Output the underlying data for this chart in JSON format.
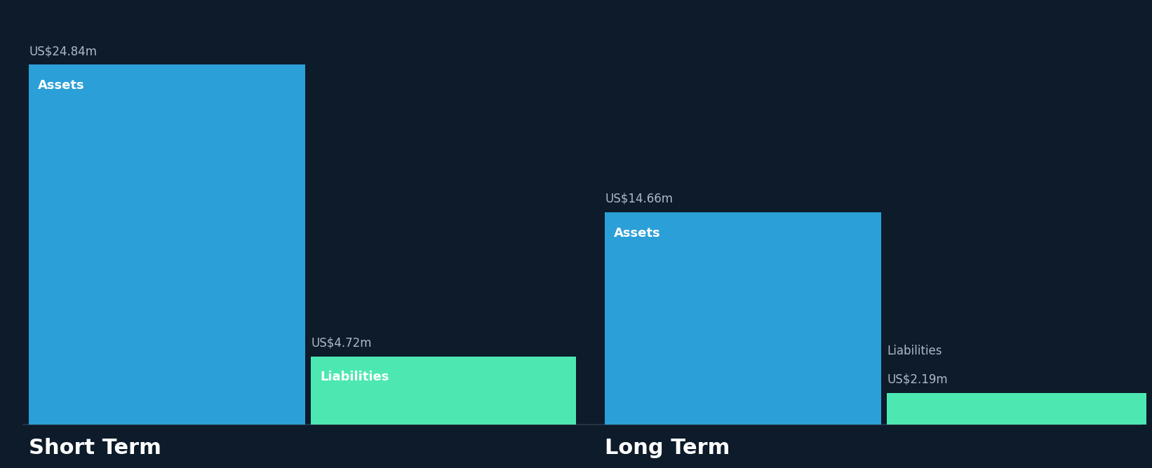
{
  "background_color": "#0d1b2a",
  "short_term": {
    "assets_value": 24.84,
    "liabilities_value": 4.72,
    "assets_label": "Assets",
    "liabilities_label": "Liabilities",
    "assets_color": "#2b9fd8",
    "liabilities_color": "#4de8b2",
    "label": "Short Term"
  },
  "long_term": {
    "assets_value": 14.66,
    "liabilities_value": 2.19,
    "assets_label": "Assets",
    "liabilities_label": "Liabilities",
    "assets_color": "#2b9fd8",
    "liabilities_color": "#4de8b2",
    "label": "Long Term"
  },
  "max_value": 24.84,
  "text_color": "#ffffff",
  "value_label_color": "#b0b8c8",
  "baseline_color": "#2a3a4a",
  "label_fontsize": 22,
  "value_fontsize": 12,
  "inside_label_fontsize": 13
}
